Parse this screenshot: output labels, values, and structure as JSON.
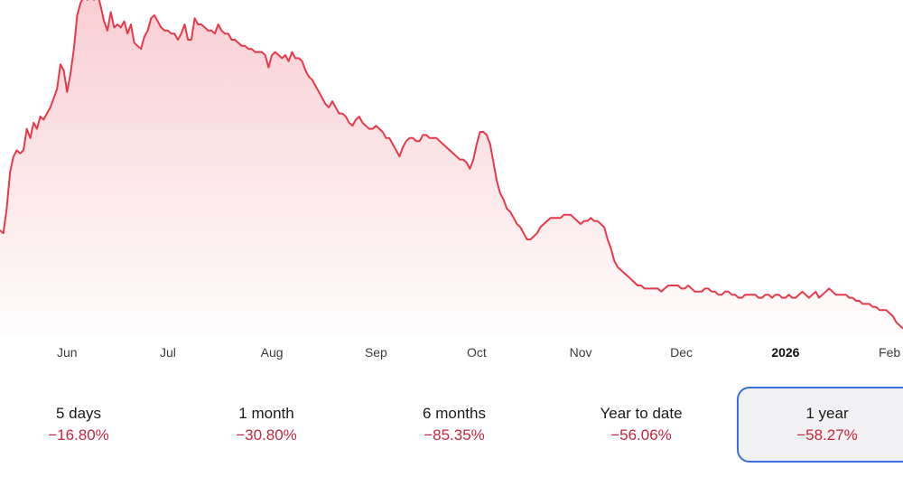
{
  "colors": {
    "line": "#e8394a",
    "fill": "#f7c5cb",
    "negative": "#c5283d",
    "selected_border": "#3b6fe0"
  },
  "chart_data": {
    "type": "area",
    "x_ticks": [
      {
        "label": "Jun",
        "t": 20,
        "bold": false
      },
      {
        "label": "Jul",
        "t": 50,
        "bold": false
      },
      {
        "label": "Aug",
        "t": 81,
        "bold": false
      },
      {
        "label": "Sep",
        "t": 112,
        "bold": false
      },
      {
        "label": "Oct",
        "t": 142,
        "bold": false
      },
      {
        "label": "Nov",
        "t": 173,
        "bold": false
      },
      {
        "label": "Dec",
        "t": 203,
        "bold": false
      },
      {
        "label": "2026",
        "t": 234,
        "bold": true
      },
      {
        "label": "Feb",
        "t": 265,
        "bold": false
      }
    ],
    "xlim": [
      0,
      269
    ],
    "ylim": [
      0,
      100
    ],
    "points": [
      [
        0,
        28
      ],
      [
        1,
        27
      ],
      [
        2,
        35
      ],
      [
        3,
        47
      ],
      [
        4,
        52
      ],
      [
        5,
        54
      ],
      [
        6,
        53
      ],
      [
        7,
        54
      ],
      [
        8,
        61
      ],
      [
        9,
        58
      ],
      [
        10,
        63
      ],
      [
        11,
        61
      ],
      [
        12,
        65
      ],
      [
        13,
        64
      ],
      [
        14,
        66
      ],
      [
        15,
        68
      ],
      [
        16,
        71
      ],
      [
        17,
        74
      ],
      [
        18,
        82
      ],
      [
        19,
        80
      ],
      [
        20,
        73
      ],
      [
        21,
        79
      ],
      [
        22,
        87
      ],
      [
        23,
        98
      ],
      [
        24,
        102
      ],
      [
        25,
        104
      ],
      [
        26,
        103
      ],
      [
        27,
        104
      ],
      [
        28,
        103
      ],
      [
        29,
        105
      ],
      [
        30,
        101
      ],
      [
        31,
        96
      ],
      [
        32,
        93
      ],
      [
        33,
        99
      ],
      [
        34,
        94
      ],
      [
        35,
        95
      ],
      [
        36,
        94
      ],
      [
        37,
        96
      ],
      [
        38,
        92
      ],
      [
        39,
        95
      ],
      [
        40,
        89
      ],
      [
        41,
        88
      ],
      [
        42,
        87
      ],
      [
        43,
        91
      ],
      [
        44,
        93
      ],
      [
        45,
        97
      ],
      [
        46,
        98
      ],
      [
        47,
        96
      ],
      [
        48,
        94
      ],
      [
        49,
        93
      ],
      [
        50,
        93
      ],
      [
        51,
        92
      ],
      [
        52,
        92
      ],
      [
        53,
        90
      ],
      [
        54,
        92
      ],
      [
        55,
        95
      ],
      [
        56,
        90
      ],
      [
        57,
        90
      ],
      [
        58,
        97
      ],
      [
        59,
        95
      ],
      [
        60,
        95
      ],
      [
        61,
        94
      ],
      [
        62,
        93
      ],
      [
        63,
        93
      ],
      [
        64,
        92
      ],
      [
        65,
        95
      ],
      [
        66,
        93
      ],
      [
        67,
        92
      ],
      [
        68,
        92
      ],
      [
        69,
        90
      ],
      [
        70,
        90
      ],
      [
        71,
        89
      ],
      [
        72,
        88
      ],
      [
        73,
        88
      ],
      [
        74,
        87
      ],
      [
        75,
        87
      ],
      [
        76,
        86
      ],
      [
        77,
        86
      ],
      [
        78,
        86
      ],
      [
        79,
        85
      ],
      [
        80,
        81
      ],
      [
        81,
        85
      ],
      [
        82,
        86
      ],
      [
        83,
        85
      ],
      [
        84,
        84
      ],
      [
        85,
        85
      ],
      [
        86,
        83
      ],
      [
        87,
        86
      ],
      [
        88,
        84
      ],
      [
        89,
        84
      ],
      [
        90,
        83
      ],
      [
        91,
        80
      ],
      [
        92,
        78
      ],
      [
        93,
        77
      ],
      [
        94,
        75
      ],
      [
        95,
        73
      ],
      [
        96,
        71
      ],
      [
        97,
        69
      ],
      [
        98,
        68
      ],
      [
        99,
        70
      ],
      [
        100,
        68
      ],
      [
        101,
        66
      ],
      [
        102,
        66
      ],
      [
        103,
        65
      ],
      [
        104,
        63
      ],
      [
        105,
        62
      ],
      [
        106,
        64
      ],
      [
        107,
        65
      ],
      [
        108,
        63
      ],
      [
        109,
        62
      ],
      [
        110,
        61
      ],
      [
        111,
        61
      ],
      [
        112,
        62
      ],
      [
        113,
        61
      ],
      [
        114,
        60
      ],
      [
        115,
        58
      ],
      [
        116,
        58
      ],
      [
        117,
        56
      ],
      [
        118,
        54
      ],
      [
        119,
        52
      ],
      [
        120,
        55
      ],
      [
        121,
        57
      ],
      [
        122,
        58
      ],
      [
        123,
        58
      ],
      [
        124,
        57
      ],
      [
        125,
        57
      ],
      [
        126,
        59
      ],
      [
        127,
        59
      ],
      [
        128,
        58
      ],
      [
        129,
        58
      ],
      [
        130,
        58
      ],
      [
        131,
        57
      ],
      [
        132,
        56
      ],
      [
        133,
        55
      ],
      [
        134,
        54
      ],
      [
        135,
        53
      ],
      [
        136,
        52
      ],
      [
        137,
        51
      ],
      [
        138,
        51
      ],
      [
        139,
        50
      ],
      [
        140,
        48
      ],
      [
        141,
        51
      ],
      [
        142,
        56
      ],
      [
        143,
        60
      ],
      [
        144,
        60
      ],
      [
        145,
        59
      ],
      [
        146,
        56
      ],
      [
        147,
        50
      ],
      [
        148,
        44
      ],
      [
        149,
        40
      ],
      [
        150,
        38
      ],
      [
        151,
        35
      ],
      [
        152,
        34
      ],
      [
        153,
        32
      ],
      [
        154,
        30
      ],
      [
        155,
        29
      ],
      [
        156,
        27
      ],
      [
        157,
        25
      ],
      [
        158,
        25
      ],
      [
        159,
        26
      ],
      [
        160,
        27
      ],
      [
        161,
        29
      ],
      [
        162,
        30
      ],
      [
        163,
        31
      ],
      [
        164,
        32
      ],
      [
        165,
        32
      ],
      [
        166,
        32
      ],
      [
        167,
        32
      ],
      [
        168,
        33
      ],
      [
        169,
        33
      ],
      [
        170,
        33
      ],
      [
        171,
        32
      ],
      [
        172,
        31
      ],
      [
        173,
        30
      ],
      [
        174,
        31
      ],
      [
        175,
        31
      ],
      [
        176,
        32
      ],
      [
        177,
        31
      ],
      [
        178,
        31
      ],
      [
        179,
        30
      ],
      [
        180,
        29
      ],
      [
        181,
        25
      ],
      [
        182,
        22
      ],
      [
        183,
        18
      ],
      [
        184,
        16
      ],
      [
        185,
        15
      ],
      [
        186,
        14
      ],
      [
        187,
        13
      ],
      [
        188,
        12
      ],
      [
        189,
        11
      ],
      [
        190,
        10
      ],
      [
        191,
        10
      ],
      [
        192,
        9
      ],
      [
        193,
        9
      ],
      [
        194,
        9
      ],
      [
        195,
        9
      ],
      [
        196,
        9
      ],
      [
        197,
        8
      ],
      [
        198,
        9
      ],
      [
        199,
        10
      ],
      [
        200,
        10
      ],
      [
        201,
        10
      ],
      [
        202,
        10
      ],
      [
        203,
        9
      ],
      [
        204,
        9
      ],
      [
        205,
        10
      ],
      [
        206,
        9
      ],
      [
        207,
        8
      ],
      [
        208,
        8
      ],
      [
        209,
        8
      ],
      [
        210,
        9
      ],
      [
        211,
        9
      ],
      [
        212,
        8
      ],
      [
        213,
        8
      ],
      [
        214,
        7
      ],
      [
        215,
        7
      ],
      [
        216,
        8
      ],
      [
        217,
        8
      ],
      [
        218,
        7
      ],
      [
        219,
        7
      ],
      [
        220,
        6
      ],
      [
        221,
        6
      ],
      [
        222,
        7
      ],
      [
        223,
        7
      ],
      [
        224,
        7
      ],
      [
        225,
        7
      ],
      [
        226,
        6
      ],
      [
        227,
        6
      ],
      [
        228,
        7
      ],
      [
        229,
        7
      ],
      [
        230,
        6
      ],
      [
        231,
        7
      ],
      [
        232,
        7
      ],
      [
        233,
        6
      ],
      [
        234,
        6
      ],
      [
        235,
        7
      ],
      [
        236,
        6
      ],
      [
        237,
        6
      ],
      [
        238,
        7
      ],
      [
        239,
        8
      ],
      [
        240,
        7
      ],
      [
        241,
        6
      ],
      [
        242,
        7
      ],
      [
        243,
        8
      ],
      [
        244,
        6
      ],
      [
        245,
        7
      ],
      [
        246,
        8
      ],
      [
        247,
        9
      ],
      [
        248,
        8
      ],
      [
        249,
        7
      ],
      [
        250,
        7
      ],
      [
        251,
        7
      ],
      [
        252,
        7
      ],
      [
        253,
        6
      ],
      [
        254,
        6
      ],
      [
        255,
        5
      ],
      [
        256,
        5
      ],
      [
        257,
        4
      ],
      [
        258,
        4
      ],
      [
        259,
        4
      ],
      [
        260,
        3
      ],
      [
        261,
        3
      ],
      [
        262,
        2
      ],
      [
        263,
        2
      ],
      [
        264,
        2
      ],
      [
        265,
        1
      ],
      [
        266,
        0
      ],
      [
        267,
        -2
      ],
      [
        268,
        -3
      ],
      [
        269,
        -4
      ]
    ]
  },
  "periods": [
    {
      "label": "5 days",
      "value": "−16.80%",
      "selected": false
    },
    {
      "label": "1 month",
      "value": "−30.80%",
      "selected": false
    },
    {
      "label": "6 months",
      "value": "−85.35%",
      "selected": false
    },
    {
      "label": "Year to date",
      "value": "−56.06%",
      "selected": false
    },
    {
      "label": "1 year",
      "value": "−58.27%",
      "selected": true
    }
  ]
}
